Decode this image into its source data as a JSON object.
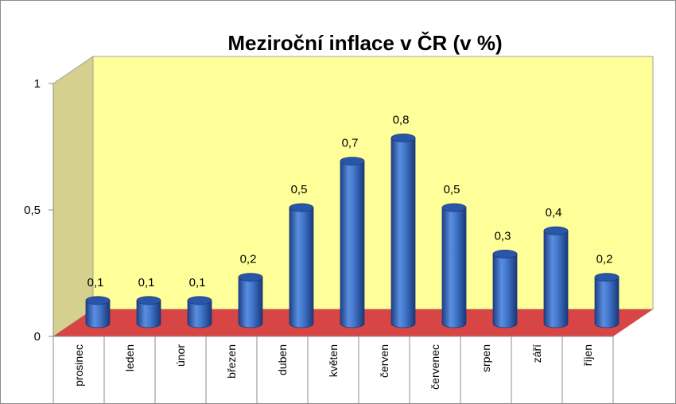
{
  "chart_data": {
    "type": "bar",
    "style": "3d-cylinder",
    "title": "Meziroční inflace v ČR  (v %)",
    "categories": [
      "prosinec",
      "leden",
      "únor",
      "březen",
      "duben",
      "květen",
      "červen",
      "červenec",
      "srpen",
      "září",
      "říjen"
    ],
    "values": [
      0.1,
      0.1,
      0.1,
      0.2,
      0.5,
      0.7,
      0.8,
      0.5,
      0.3,
      0.4,
      0.2
    ],
    "data_labels": [
      "0,1",
      "0,1",
      "0,1",
      "0,2",
      "0,5",
      "0,7",
      "0,8",
      "0,5",
      "0,3",
      "0,4",
      "0,2"
    ],
    "ylim": [
      0,
      1
    ],
    "yticks": [
      0,
      0.5,
      1
    ],
    "ytick_labels": [
      "0",
      "0,5",
      "1"
    ],
    "xlabel": "",
    "ylabel": "",
    "legend": "none",
    "grid": false,
    "colors": {
      "bar": "#3f74c8",
      "bar_top": "#2a56a8",
      "back_wall": "#ffff99",
      "side_wall": "#d6d08e",
      "floor": "#d84545"
    }
  }
}
